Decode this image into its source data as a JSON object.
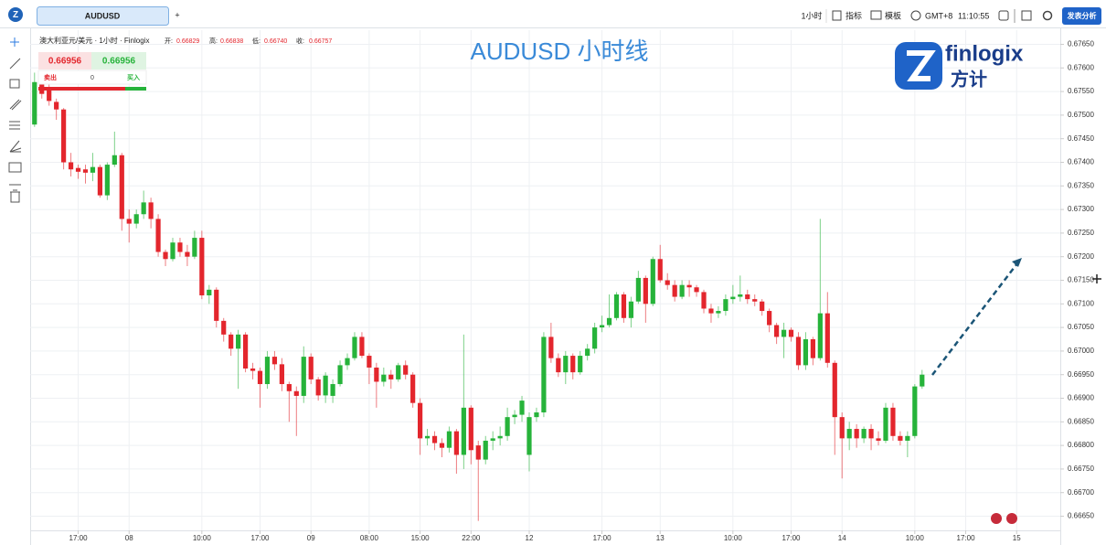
{
  "toolbar": {
    "tab": "AUDUSD",
    "add": "+",
    "interval": "1小时",
    "indicators": "指标",
    "templates": "模板",
    "timezone": "GMT+8",
    "clock": "11:10:55",
    "publish": "发表分析"
  },
  "legend": {
    "symbol": "澳大利亚元/美元 · 1小时 · Finlogix",
    "open_label": "开:",
    "open": "0.66829",
    "high_label": "高:",
    "high": "0.66838",
    "low_label": "低:",
    "low": "0.66740",
    "close_label": "收:",
    "close": "0.66757"
  },
  "trade": {
    "sell_price": "0.66956",
    "buy_price": "0.66956",
    "sell": "卖出",
    "quantity": "0",
    "buy": "买入"
  },
  "logo": {
    "brand": "finlogix",
    "brand_cn": "方计"
  },
  "chart_data": {
    "type": "candlestick",
    "title": "AUDUSD 小时线",
    "up_color": "#26b33a",
    "down_color": "#e3262d",
    "open": [
      0.6748,
      0.6757,
      0.67555,
      0.67528,
      0.67512,
      0.674,
      0.67388,
      0.67385,
      0.67378,
      0.6739,
      0.6733,
      0.67395,
      0.67415,
      0.6728,
      0.6727,
      0.6729,
      0.67315,
      0.6728,
      0.6721,
      0.67195,
      0.6723,
      0.6721,
      0.672,
      0.6724,
      0.67118,
      0.6713,
      0.67064,
      0.67035,
      0.67005,
      0.67035,
      0.66963,
      0.66958,
      0.6693,
      0.66988,
      0.66972,
      0.6693,
      0.66915,
      0.66905,
      0.66988,
      0.6694,
      0.66906,
      0.66905,
      0.6693,
      0.6697,
      0.66985,
      0.6703,
      0.6699,
      0.66965,
      0.66935,
      0.6695,
      0.6694,
      0.6697,
      0.6695,
      0.6689,
      0.66815,
      0.6682,
      0.66805,
      0.66795,
      0.6683,
      0.6678,
      0.6688,
      0.668,
      0.6677,
      0.6681,
      0.66815,
      0.6682,
      0.6686,
      0.66865,
      0.6678,
      0.6686,
      0.6687,
      0.6703,
      0.66985,
      0.66955,
      0.6699,
      0.66955,
      0.6699,
      0.67005,
      0.6705,
      0.67055,
      0.6707,
      0.6712,
      0.6707,
      0.67105,
      0.67155,
      0.671,
      0.67195,
      0.6715,
      0.6714,
      0.67115,
      0.6714,
      0.67135,
      0.67125,
      0.6709,
      0.6708,
      0.67085,
      0.6711,
      0.67115,
      0.6712,
      0.6711,
      0.67105,
      0.67085,
      0.67055,
      0.6703,
      0.67045,
      0.6703,
      0.6697,
      0.67025,
      0.66985,
      0.6708,
      0.66975,
      0.6686,
      0.66815,
      0.66835,
      0.66815,
      0.66835,
      0.66815,
      0.6681,
      0.6688,
      0.6682,
      0.6681,
      0.6682,
      0.66925
    ],
    "high": [
      0.6759,
      0.6758,
      0.6757,
      0.67535,
      0.67515,
      0.6742,
      0.67395,
      0.67395,
      0.6742,
      0.67395,
      0.674,
      0.67465,
      0.6742,
      0.673,
      0.673,
      0.6734,
      0.67325,
      0.6729,
      0.67215,
      0.6724,
      0.6724,
      0.67225,
      0.67255,
      0.67255,
      0.6714,
      0.67135,
      0.6707,
      0.6704,
      0.67045,
      0.6704,
      0.66975,
      0.66965,
      0.67,
      0.67,
      0.66985,
      0.66935,
      0.66925,
      0.6701,
      0.66995,
      0.66945,
      0.66955,
      0.6694,
      0.6698,
      0.66995,
      0.6704,
      0.6704,
      0.66995,
      0.66975,
      0.66965,
      0.6696,
      0.66975,
      0.6698,
      0.66955,
      0.669,
      0.66835,
      0.6683,
      0.66815,
      0.6684,
      0.66835,
      0.67035,
      0.66885,
      0.6681,
      0.6682,
      0.6683,
      0.6684,
      0.6688,
      0.66875,
      0.66905,
      0.6687,
      0.6688,
      0.6704,
      0.6706,
      0.66995,
      0.67,
      0.66995,
      0.67,
      0.67015,
      0.6706,
      0.67075,
      0.6712,
      0.67125,
      0.67125,
      0.67115,
      0.6717,
      0.6716,
      0.672,
      0.67225,
      0.67165,
      0.6715,
      0.6715,
      0.6715,
      0.6714,
      0.6713,
      0.671,
      0.67095,
      0.6712,
      0.6714,
      0.6716,
      0.6713,
      0.6712,
      0.6711,
      0.6709,
      0.6706,
      0.6706,
      0.6705,
      0.6704,
      0.6704,
      0.6703,
      0.6728,
      0.67125,
      0.6698,
      0.6687,
      0.6685,
      0.66845,
      0.6684,
      0.66845,
      0.6683,
      0.6689,
      0.6689,
      0.6683,
      0.6683,
      0.6693,
      0.6696
    ],
    "low": [
      0.67475,
      0.67535,
      0.6752,
      0.6749,
      0.67385,
      0.6737,
      0.67365,
      0.67355,
      0.6736,
      0.67325,
      0.6732,
      0.6739,
      0.67255,
      0.6723,
      0.6726,
      0.6728,
      0.6726,
      0.672,
      0.6718,
      0.6719,
      0.672,
      0.6718,
      0.67195,
      0.6711,
      0.671,
      0.6705,
      0.6702,
      0.6699,
      0.6692,
      0.66955,
      0.6694,
      0.6688,
      0.6692,
      0.6696,
      0.66915,
      0.6685,
      0.6682,
      0.6689,
      0.6693,
      0.66895,
      0.6689,
      0.6689,
      0.66925,
      0.6696,
      0.6698,
      0.66985,
      0.6693,
      0.6688,
      0.66925,
      0.6692,
      0.66935,
      0.6694,
      0.6688,
      0.6678,
      0.668,
      0.6679,
      0.66775,
      0.66785,
      0.6674,
      0.6675,
      0.6676,
      0.6664,
      0.6676,
      0.6679,
      0.668,
      0.6681,
      0.66845,
      0.6685,
      0.66745,
      0.6685,
      0.6686,
      0.66975,
      0.66945,
      0.6693,
      0.6694,
      0.6695,
      0.6698,
      0.66995,
      0.6704,
      0.6705,
      0.67065,
      0.6706,
      0.6705,
      0.671,
      0.6706,
      0.67095,
      0.67145,
      0.6713,
      0.67105,
      0.6711,
      0.67115,
      0.67115,
      0.6708,
      0.6706,
      0.6707,
      0.67075,
      0.671,
      0.67105,
      0.671,
      0.67095,
      0.67075,
      0.6704,
      0.67015,
      0.66985,
      0.6702,
      0.6696,
      0.6696,
      0.6697,
      0.6698,
      0.66965,
      0.6678,
      0.6673,
      0.6679,
      0.66795,
      0.66805,
      0.6679,
      0.668,
      0.66805,
      0.6681,
      0.668,
      0.66775,
      0.66815,
      0.6692
    ],
    "close": [
      0.6757,
      0.67545,
      0.6753,
      0.67512,
      0.674,
      0.67385,
      0.6738,
      0.67378,
      0.6739,
      0.6733,
      0.67395,
      0.67415,
      0.6728,
      0.6727,
      0.6729,
      0.67315,
      0.6728,
      0.6721,
      0.67195,
      0.6723,
      0.6721,
      0.672,
      0.6724,
      0.67118,
      0.6713,
      0.67064,
      0.67035,
      0.67005,
      0.67035,
      0.66963,
      0.66958,
      0.6693,
      0.66988,
      0.66972,
      0.6693,
      0.66915,
      0.66905,
      0.66988,
      0.6694,
      0.66906,
      0.66948,
      0.6693,
      0.6697,
      0.66985,
      0.6703,
      0.6699,
      0.66965,
      0.66935,
      0.6695,
      0.6694,
      0.6697,
      0.6695,
      0.6689,
      0.66815,
      0.6682,
      0.66805,
      0.66795,
      0.6683,
      0.6678,
      0.6688,
      0.6679,
      0.6677,
      0.6681,
      0.66815,
      0.6682,
      0.6686,
      0.66865,
      0.66895,
      0.6686,
      0.6687,
      0.6703,
      0.66985,
      0.66955,
      0.6699,
      0.66955,
      0.6699,
      0.67005,
      0.6705,
      0.67055,
      0.6707,
      0.6712,
      0.6707,
      0.67105,
      0.67155,
      0.671,
      0.67195,
      0.6715,
      0.6714,
      0.67115,
      0.6714,
      0.67135,
      0.67125,
      0.6709,
      0.6708,
      0.67085,
      0.6711,
      0.67115,
      0.6712,
      0.6711,
      0.67105,
      0.67085,
      0.67055,
      0.6703,
      0.67045,
      0.6703,
      0.6697,
      0.67025,
      0.66985,
      0.6708,
      0.66975,
      0.6686,
      0.66815,
      0.66835,
      0.66815,
      0.66835,
      0.66815,
      0.6681,
      0.6688,
      0.6682,
      0.6681,
      0.6682,
      0.66925,
      0.6695
    ],
    "xlim": [
      -0.6,
      141
    ],
    "ylim": [
      0.6662,
      0.6768
    ],
    "xticks": [
      {
        "value": 6,
        "label": "17:00"
      },
      {
        "value": 13,
        "label": "08"
      },
      {
        "value": 23,
        "label": "10:00"
      },
      {
        "value": 31,
        "label": "17:00"
      },
      {
        "value": 38,
        "label": "09"
      },
      {
        "value": 46,
        "label": "08:00"
      },
      {
        "value": 53,
        "label": "15:00"
      },
      {
        "value": 60,
        "label": "22:00"
      },
      {
        "value": 68,
        "label": "12"
      },
      {
        "value": 78,
        "label": "17:00"
      },
      {
        "value": 86,
        "label": "13"
      },
      {
        "value": 96,
        "label": "10:00"
      },
      {
        "value": 104,
        "label": "17:00"
      },
      {
        "value": 111,
        "label": "14"
      },
      {
        "value": 121,
        "label": "10:00"
      },
      {
        "value": 128,
        "label": "17:00"
      },
      {
        "value": 135,
        "label": "15"
      }
    ],
    "yticks": [
      {
        "value": 0.6665,
        "label": "0.66650"
      },
      {
        "value": 0.667,
        "label": "0.66700"
      },
      {
        "value": 0.6675,
        "label": "0.66750"
      },
      {
        "value": 0.668,
        "label": "0.66800"
      },
      {
        "value": 0.6685,
        "label": "0.66850"
      },
      {
        "value": 0.669,
        "label": "0.66900"
      },
      {
        "value": 0.6695,
        "label": "0.66950"
      },
      {
        "value": 0.67,
        "label": "0.67000"
      },
      {
        "value": 0.6705,
        "label": "0.67050"
      },
      {
        "value": 0.671,
        "label": "0.67100"
      },
      {
        "value": 0.6715,
        "label": "0.67150"
      },
      {
        "value": 0.672,
        "label": "0.67200"
      },
      {
        "value": 0.6725,
        "label": "0.67250"
      },
      {
        "value": 0.673,
        "label": "0.67300"
      },
      {
        "value": 0.6735,
        "label": "0.67350"
      },
      {
        "value": 0.674,
        "label": "0.67400"
      },
      {
        "value": 0.6745,
        "label": "0.67450"
      },
      {
        "value": 0.675,
        "label": "0.67500"
      },
      {
        "value": 0.6755,
        "label": "0.67550"
      },
      {
        "value": 0.676,
        "label": "0.67600"
      },
      {
        "value": 0.6765,
        "label": "0.67650"
      }
    ],
    "grid": true
  }
}
